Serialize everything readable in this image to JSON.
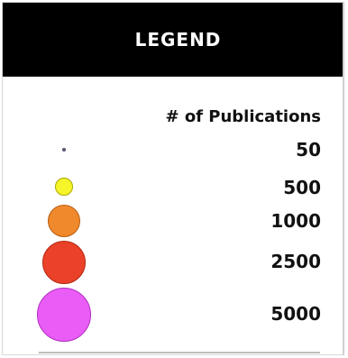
{
  "legend": {
    "title": "LEGEND",
    "subtitle": "# of Publications",
    "items": [
      {
        "value": "50",
        "color": "#6f6f8a",
        "border": "#4a4a60"
      },
      {
        "value": "500",
        "color": "#f5f52a",
        "border": "#a8a800"
      },
      {
        "value": "1000",
        "color": "#f0892b",
        "border": "#b85e10"
      },
      {
        "value": "2500",
        "color": "#eb4128",
        "border": "#b02a14"
      },
      {
        "value": "5000",
        "color": "#e95cf5",
        "border": "#b030c0"
      }
    ]
  }
}
